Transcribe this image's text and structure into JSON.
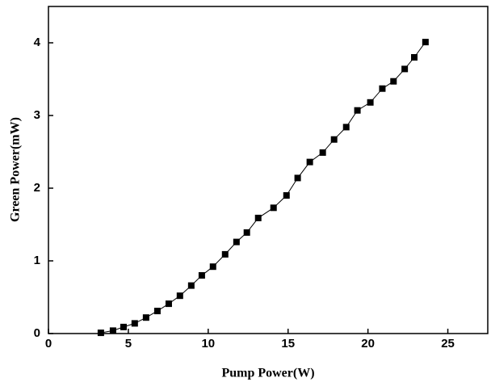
{
  "chart_data": {
    "type": "line",
    "x_label": "Pump Power(W)",
    "y_label": "Green Power(mW)",
    "xlim": [
      0,
      27.5
    ],
    "ylim": [
      0,
      4.5
    ],
    "xticks": [
      0,
      5,
      10,
      15,
      20,
      25
    ],
    "yticks": [
      0,
      1,
      2,
      3,
      4
    ],
    "series": [
      {
        "color": "#000000",
        "x": [
          3.28,
          4.04,
          4.7,
          5.4,
          6.11,
          6.82,
          7.53,
          8.23,
          8.94,
          9.6,
          10.3,
          11.06,
          11.77,
          12.42,
          13.13,
          14.09,
          14.9,
          15.6,
          16.36,
          17.17,
          17.88,
          18.64,
          19.34,
          20.15,
          20.9,
          21.6,
          22.3,
          22.9,
          23.6
        ],
        "values": [
          0.01,
          0.04,
          0.09,
          0.14,
          0.22,
          0.31,
          0.41,
          0.52,
          0.66,
          0.8,
          0.92,
          1.09,
          1.26,
          1.39,
          1.59,
          1.73,
          1.9,
          2.14,
          2.36,
          2.49,
          2.67,
          2.84,
          3.07,
          3.18,
          3.37,
          3.47,
          3.64,
          3.8,
          4.01
        ]
      }
    ]
  }
}
